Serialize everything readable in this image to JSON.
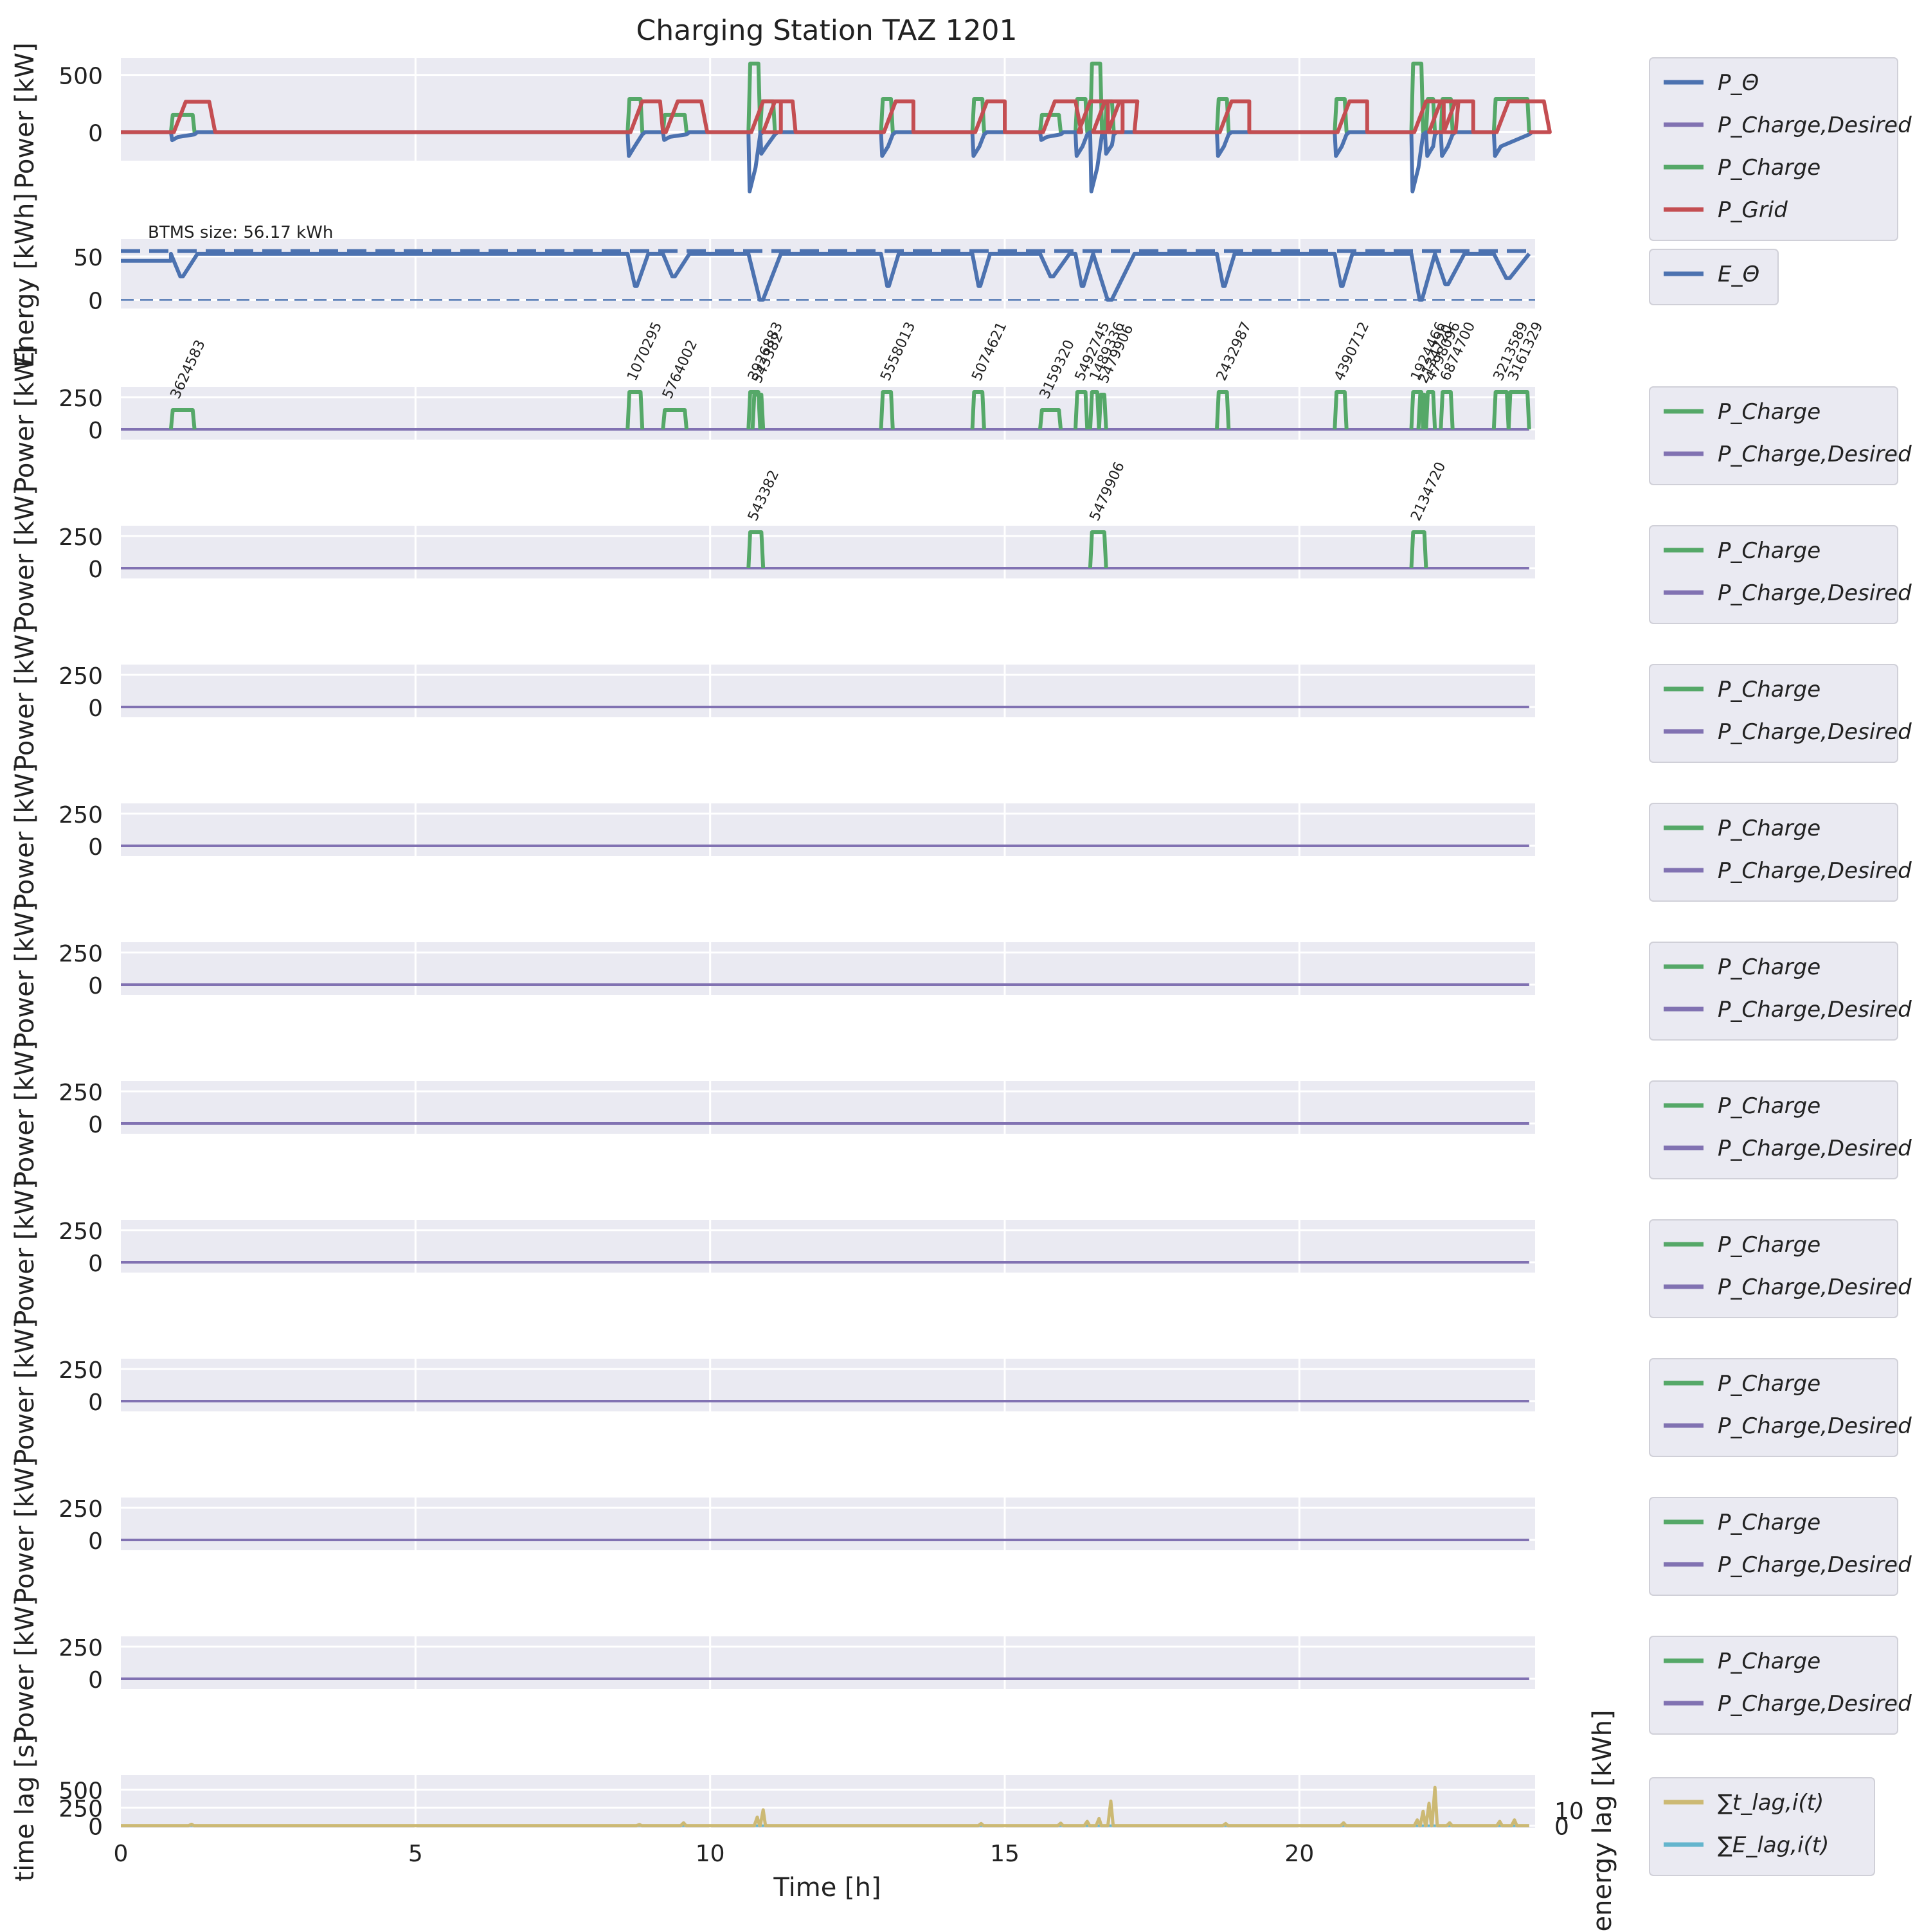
{
  "figure_title": "Charging Station TAZ 1201",
  "colors": {
    "p_bat": "#4c72b0",
    "p_desired": "#8172b2",
    "p_charge": "#55a868",
    "p_grid": "#c44e52",
    "t_lag": "#ccb974",
    "e_lag": "#64b5cd",
    "panel_bg": "#eaeaf2",
    "grid": "#ffffff"
  },
  "legends": {
    "p_bat": "P_Θ",
    "p_desired": "P_Charge,Desired",
    "p_charge": "P_Charge",
    "p_grid": "P_Grid",
    "e_bat": "E_Θ",
    "t_lag": "∑t_lag,i(t)",
    "e_lag": "∑E_lag,i(t)"
  },
  "axis_labels": {
    "power": "Power [kW]",
    "energy": "Energy [kWh]",
    "time_lag": "time lag [s]",
    "energy_lag": "energy lag [kWh]",
    "time": "Time [h]"
  },
  "x_ticks": [
    "0",
    "5",
    "10",
    "15",
    "20"
  ],
  "btms_label": "BTMS size: 56.17 kWh",
  "chart_data": [
    {
      "type": "line",
      "title": "Charging Station TAZ 1201",
      "ylabel": "Power [kW]",
      "xlim": [
        0,
        24
      ],
      "ylim": [
        -250,
        650
      ],
      "yticks": [
        0,
        500
      ],
      "events": [
        [
          0.85,
          1.25,
          150,
          265
        ],
        [
          8.6,
          8.85,
          290,
          270
        ],
        [
          9.2,
          9.6,
          150,
          270
        ],
        [
          10.65,
          10.85,
          600,
          270
        ],
        [
          10.85,
          11.1,
          270,
          270
        ],
        [
          12.9,
          13.1,
          290,
          270
        ],
        [
          14.45,
          14.65,
          290,
          270
        ],
        [
          15.6,
          15.95,
          150,
          270
        ],
        [
          16.2,
          16.4,
          290,
          270
        ],
        [
          16.45,
          16.65,
          600,
          270
        ],
        [
          16.7,
          16.85,
          270,
          270
        ],
        [
          18.6,
          18.8,
          290,
          270
        ],
        [
          20.6,
          20.8,
          290,
          270
        ],
        [
          21.9,
          22.1,
          600,
          270
        ],
        [
          22.15,
          22.3,
          290,
          270
        ],
        [
          22.4,
          22.6,
          290,
          270
        ],
        [
          23.3,
          23.9,
          290,
          270
        ]
      ],
      "series": [
        {
          "name": "P_Θ",
          "key": "p_bat"
        },
        {
          "name": "P_Charge,Desired",
          "key": "p_desired"
        },
        {
          "name": "P_Charge",
          "key": "p_charge"
        },
        {
          "name": "P_Grid",
          "key": "p_grid"
        }
      ]
    },
    {
      "type": "line",
      "ylabel": "Energy [kWh]",
      "xlim": [
        0,
        24
      ],
      "ylim": [
        -10,
        70
      ],
      "yticks": [
        0,
        50
      ],
      "btms_size_kwh": 56.17,
      "dips": [
        [
          0,
          0.85,
          45
        ],
        [
          0.85,
          1.3,
          27
        ],
        [
          8.6,
          8.95,
          16
        ],
        [
          9.2,
          9.65,
          27
        ],
        [
          10.65,
          11.2,
          0
        ],
        [
          12.9,
          13.2,
          16
        ],
        [
          14.45,
          14.75,
          16
        ],
        [
          15.6,
          16.1,
          27
        ],
        [
          16.2,
          16.5,
          16
        ],
        [
          16.5,
          17.2,
          0
        ],
        [
          18.6,
          18.9,
          16
        ],
        [
          20.6,
          20.9,
          16
        ],
        [
          21.9,
          22.3,
          0
        ],
        [
          22.3,
          22.8,
          18
        ],
        [
          23.3,
          23.9,
          25
        ]
      ],
      "series": [
        {
          "name": "E_Θ",
          "key": "e_bat"
        }
      ]
    },
    {
      "type": "line",
      "ylabel": "Power [kW]",
      "xlim": [
        0,
        24
      ],
      "ylim": [
        -80,
        330
      ],
      "yticks": [
        0,
        250
      ],
      "sessions": [
        {
          "id": "3624583",
          "start": 0.85,
          "end": 1.25,
          "power": 150
        },
        {
          "id": "1070295",
          "start": 8.6,
          "end": 8.85,
          "power": 290
        },
        {
          "id": "5764002",
          "start": 9.2,
          "end": 9.6,
          "power": 150
        },
        {
          "id": "3926883",
          "start": 10.65,
          "end": 10.85,
          "power": 290
        },
        {
          "id": "543382",
          "start": 10.72,
          "end": 10.9,
          "power": 270
        },
        {
          "id": "5558013",
          "start": 12.9,
          "end": 13.1,
          "power": 290
        },
        {
          "id": "5074621",
          "start": 14.45,
          "end": 14.65,
          "power": 290
        },
        {
          "id": "3159320",
          "start": 15.6,
          "end": 15.95,
          "power": 150
        },
        {
          "id": "5492745",
          "start": 16.2,
          "end": 16.4,
          "power": 290
        },
        {
          "id": "1489336",
          "start": 16.45,
          "end": 16.6,
          "power": 290
        },
        {
          "id": "5479906",
          "start": 16.6,
          "end": 16.72,
          "power": 270
        },
        {
          "id": "2432987",
          "start": 18.6,
          "end": 18.8,
          "power": 290
        },
        {
          "id": "4390712",
          "start": 20.6,
          "end": 20.8,
          "power": 290
        },
        {
          "id": "1924466",
          "start": 21.9,
          "end": 22.1,
          "power": 290
        },
        {
          "id": "2134720",
          "start": 22.02,
          "end": 22.15,
          "power": 270
        },
        {
          "id": "4798096",
          "start": 22.15,
          "end": 22.3,
          "power": 290
        },
        {
          "id": "6874700",
          "start": 22.4,
          "end": 22.6,
          "power": 290
        },
        {
          "id": "3213589",
          "start": 23.3,
          "end": 23.55,
          "power": 290
        },
        {
          "id": "3161329",
          "start": 23.55,
          "end": 23.9,
          "power": 290
        }
      ],
      "series": [
        {
          "name": "P_Charge",
          "key": "p_charge"
        },
        {
          "name": "P_Charge,Desired",
          "key": "p_desired"
        }
      ]
    },
    {
      "type": "line",
      "ylabel": "Power [kW]",
      "xlim": [
        0,
        24
      ],
      "ylim": [
        -80,
        330
      ],
      "yticks": [
        0,
        250
      ],
      "sessions": [
        {
          "id": "543382",
          "start": 10.65,
          "end": 10.9,
          "power": 280
        },
        {
          "id": "5479906",
          "start": 16.45,
          "end": 16.72,
          "power": 280
        },
        {
          "id": "2134720",
          "start": 21.9,
          "end": 22.15,
          "power": 280
        }
      ],
      "series": [
        {
          "name": "P_Charge",
          "key": "p_charge"
        },
        {
          "name": "P_Charge,Desired",
          "key": "p_desired"
        }
      ]
    },
    {
      "type": "line",
      "ylabel": "Power [kW]",
      "xlim": [
        0,
        24
      ],
      "ylim": [
        -80,
        330
      ],
      "yticks": [
        0,
        250
      ],
      "sessions": [],
      "series": [
        {
          "name": "P_Charge",
          "key": "p_charge"
        },
        {
          "name": "P_Charge,Desired",
          "key": "p_desired"
        }
      ]
    },
    {
      "type": "line",
      "ylabel": "Power [kW]",
      "xlim": [
        0,
        24
      ],
      "ylim": [
        -80,
        330
      ],
      "yticks": [
        0,
        250
      ],
      "sessions": [],
      "series": [
        {
          "name": "P_Charge",
          "key": "p_charge"
        },
        {
          "name": "P_Charge,Desired",
          "key": "p_desired"
        }
      ]
    },
    {
      "type": "line",
      "ylabel": "Power [kW]",
      "xlim": [
        0,
        24
      ],
      "ylim": [
        -80,
        330
      ],
      "yticks": [
        0,
        250
      ],
      "sessions": [],
      "series": [
        {
          "name": "P_Charge",
          "key": "p_charge"
        },
        {
          "name": "P_Charge,Desired",
          "key": "p_desired"
        }
      ]
    },
    {
      "type": "line",
      "ylabel": "Power [kW]",
      "xlim": [
        0,
        24
      ],
      "ylim": [
        -80,
        330
      ],
      "yticks": [
        0,
        250
      ],
      "sessions": [],
      "series": [
        {
          "name": "P_Charge",
          "key": "p_charge"
        },
        {
          "name": "P_Charge,Desired",
          "key": "p_desired"
        }
      ]
    },
    {
      "type": "line",
      "ylabel": "Power [kW]",
      "xlim": [
        0,
        24
      ],
      "ylim": [
        -80,
        330
      ],
      "yticks": [
        0,
        250
      ],
      "sessions": [],
      "series": [
        {
          "name": "P_Charge",
          "key": "p_charge"
        },
        {
          "name": "P_Charge,Desired",
          "key": "p_desired"
        }
      ]
    },
    {
      "type": "line",
      "ylabel": "Power [kW]",
      "xlim": [
        0,
        24
      ],
      "ylim": [
        -80,
        330
      ],
      "yticks": [
        0,
        250
      ],
      "sessions": [],
      "series": [
        {
          "name": "P_Charge",
          "key": "p_charge"
        },
        {
          "name": "P_Charge,Desired",
          "key": "p_desired"
        }
      ]
    },
    {
      "type": "line",
      "ylabel": "Power [kW]",
      "xlim": [
        0,
        24
      ],
      "ylim": [
        -80,
        330
      ],
      "yticks": [
        0,
        250
      ],
      "sessions": [],
      "series": [
        {
          "name": "P_Charge",
          "key": "p_charge"
        },
        {
          "name": "P_Charge,Desired",
          "key": "p_desired"
        }
      ]
    },
    {
      "type": "line",
      "ylabel": "Power [kW]",
      "xlim": [
        0,
        24
      ],
      "ylim": [
        -80,
        330
      ],
      "yticks": [
        0,
        250
      ],
      "sessions": [],
      "series": [
        {
          "name": "P_Charge",
          "key": "p_charge"
        },
        {
          "name": "P_Charge,Desired",
          "key": "p_desired"
        }
      ]
    },
    {
      "type": "line",
      "ylabel": "time lag [s]",
      "ylabel_right": "energy lag [kWh]",
      "xlabel": "Time [h]",
      "xlim": [
        0,
        24
      ],
      "ylim": [
        -30,
        700
      ],
      "yticks": [
        0,
        250,
        500
      ],
      "yticks_right": [
        0,
        10
      ],
      "t_lag_spikes": [
        [
          1.2,
          20
        ],
        [
          8.8,
          15
        ],
        [
          9.55,
          40
        ],
        [
          10.8,
          120
        ],
        [
          10.9,
          220
        ],
        [
          14.6,
          30
        ],
        [
          15.95,
          35
        ],
        [
          16.4,
          60
        ],
        [
          16.6,
          100
        ],
        [
          16.8,
          340
        ],
        [
          18.75,
          30
        ],
        [
          20.75,
          40
        ],
        [
          22.0,
          80
        ],
        [
          22.1,
          200
        ],
        [
          22.2,
          310
        ],
        [
          22.3,
          530
        ],
        [
          22.55,
          40
        ],
        [
          23.4,
          60
        ],
        [
          23.65,
          80
        ]
      ],
      "series": [
        {
          "name": "∑t_lag,i(t)",
          "key": "t_lag"
        },
        {
          "name": "∑E_lag,i(t)",
          "key": "e_lag"
        }
      ]
    }
  ]
}
